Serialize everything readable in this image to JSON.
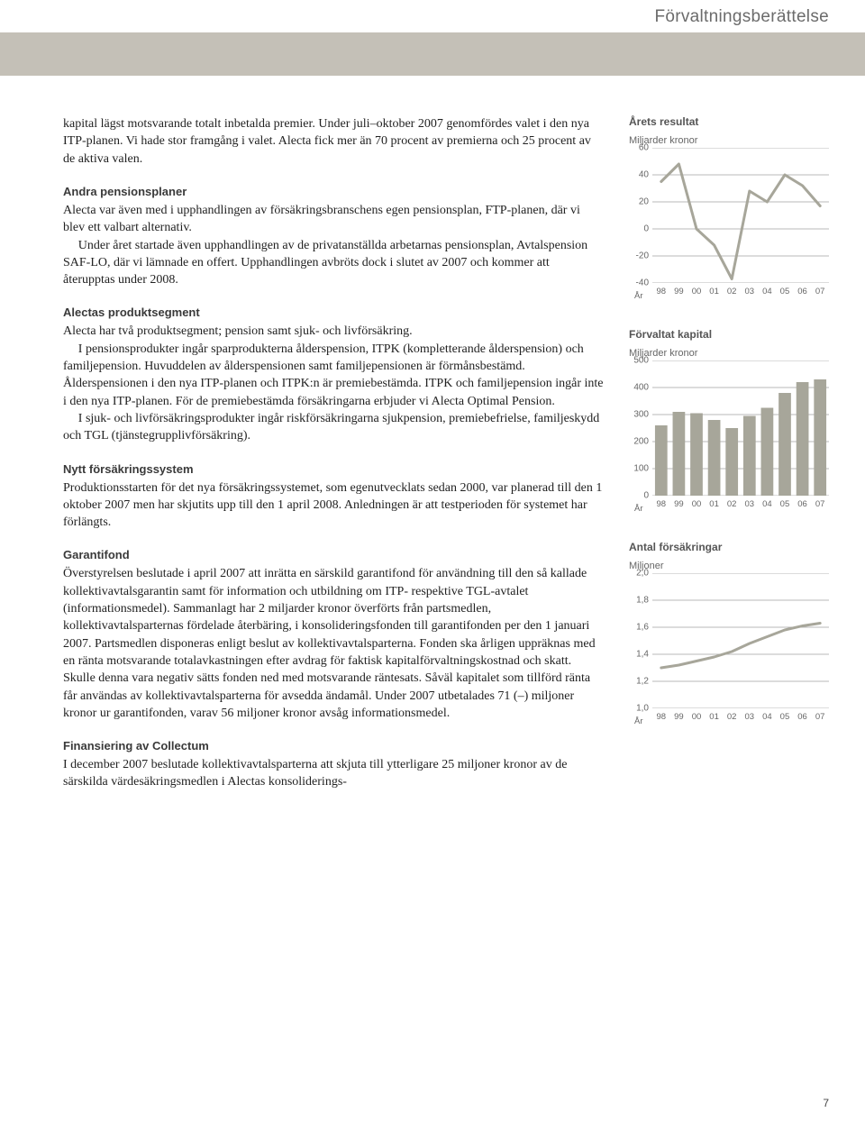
{
  "header": {
    "title": "Förvaltningsberättelse"
  },
  "body": {
    "intro": "kapital lägst motsvarande totalt inbetalda premier. Under juli–oktober 2007 genomfördes valet i den nya ITP-planen. Vi hade stor framgång i valet. Alecta fick mer än 70 procent av premierna och 25 procent av de aktiva valen.",
    "sec1_title": "Andra pensionsplaner",
    "sec1_p1": "Alecta var även med i upphandlingen av försäkringsbranschens egen pensionsplan, FTP-planen, där vi blev ett valbart alternativ.",
    "sec1_p2": "Under året startade även upphandlingen av de privatanställda arbetarnas pensionsplan, Avtalspension SAF-LO, där vi lämnade en offert. Upphandlingen avbröts dock i slutet av 2007 och kommer att återupptas under 2008.",
    "sec2_title": "Alectas produktsegment",
    "sec2_p1": "Alecta har två produktsegment; pension samt sjuk- och livförsäkring.",
    "sec2_p2": "I pensionsprodukter ingår sparprodukterna ålderspension, ITPK (kompletterande ålderspension) och familjepension. Huvuddelen av ålderspensionen samt familjepensionen är förmånsbestämd. Ålderspensionen i den nya ITP-planen och ITPK:n är premiebestämda. ITPK och familjepension ingår inte i den nya ITP-planen. För de premiebestämda försäkringarna erbjuder vi Alecta Optimal Pension.",
    "sec2_p3": "I sjuk- och livförsäkringsprodukter ingår riskförsäkringarna sjukpension, premiebefrielse, familjeskydd och TGL (tjänstegrupplivförsäkring).",
    "sec3_title": "Nytt försäkringssystem",
    "sec3_p1": "Produktionsstarten för det nya försäkringssystemet, som egenutvecklats sedan 2000, var planerad till den 1 oktober 2007 men har skjutits upp till den 1 april 2008. Anledningen är att testperioden för systemet har förlängts.",
    "sec4_title": "Garantifond",
    "sec4_p1": "Överstyrelsen beslutade i april 2007 att inrätta en särskild garantifond för användning till den så kallade kollektivavtalsgarantin samt för information och utbildning om ITP- respektive TGL-avtalet (informationsmedel). Sammanlagt har 2 miljarder kronor överförts från partsmedlen, kollektivavtalsparternas fördelade återbäring, i konsolideringsfonden till garantifonden per den 1 januari 2007. Partsmedlen disponeras enligt beslut av kollektivavtalsparterna. Fonden ska årligen uppräknas med en ränta motsvarande totalavkastningen efter avdrag för faktisk kapitalförvaltningskostnad och skatt. Skulle denna vara negativ sätts fonden ned med motsvarande räntesats. Såväl kapitalet som tillförd ränta får användas av kollektivavtalsparterna för avsedda ändamål. Under 2007 utbetalades 71 (–) miljoner kronor ur garantifonden, varav 56 miljoner kronor avsåg informations­medel.",
    "sec5_title": "Finansiering av Collectum",
    "sec5_p1": "I december 2007 beslutade kollektivavtalsparterna att skjuta till ytterligare 25 miljoner kronor av de särskilda värdesäkringsmedlen i Alectas konsoliderings-"
  },
  "chart1": {
    "type": "line",
    "title": "Årets resultat",
    "y_unit": "Miljarder kronor",
    "ylim": [
      -40,
      60
    ],
    "ytick_step": 20,
    "yticks": [
      60,
      40,
      20,
      0,
      -20,
      -40
    ],
    "x_prefix": "År",
    "xlabels": [
      "98",
      "99",
      "00",
      "01",
      "02",
      "03",
      "04",
      "05",
      "06",
      "07"
    ],
    "values": [
      35,
      48,
      0,
      -12,
      -37,
      28,
      20,
      40,
      32,
      17
    ],
    "line_color": "#a7a69a",
    "line_width": 3,
    "grid_color": "#b8b8b8",
    "label_fontsize": 10
  },
  "chart2": {
    "type": "bar",
    "title": "Förvaltat kapital",
    "y_unit": "Miljarder kronor",
    "ylim": [
      0,
      500
    ],
    "ytick_step": 100,
    "yticks": [
      500,
      400,
      300,
      200,
      100,
      0
    ],
    "x_prefix": "År",
    "xlabels": [
      "98",
      "99",
      "00",
      "01",
      "02",
      "03",
      "04",
      "05",
      "06",
      "07"
    ],
    "values": [
      260,
      310,
      305,
      280,
      250,
      295,
      325,
      380,
      420,
      430
    ],
    "bar_color": "#a7a69a",
    "grid_color": "#b8b8b8",
    "bar_width": 0.7,
    "label_fontsize": 10
  },
  "chart3": {
    "type": "line",
    "title": "Antal försäkringar",
    "y_unit": "Miljoner",
    "ylim": [
      1.0,
      2.0
    ],
    "ytick_step": 0.2,
    "yticks": [
      "2,0",
      "1,8",
      "1,6",
      "1,4",
      "1,2",
      "1,0"
    ],
    "ytick_values": [
      2.0,
      1.8,
      1.6,
      1.4,
      1.2,
      1.0
    ],
    "x_prefix": "År",
    "xlabels": [
      "98",
      "99",
      "00",
      "01",
      "02",
      "03",
      "04",
      "05",
      "06",
      "07"
    ],
    "values": [
      1.3,
      1.32,
      1.35,
      1.38,
      1.42,
      1.48,
      1.53,
      1.58,
      1.61,
      1.63
    ],
    "line_color": "#a7a69a",
    "line_width": 3,
    "grid_color": "#b8b8b8",
    "label_fontsize": 10
  },
  "page_number": "7"
}
